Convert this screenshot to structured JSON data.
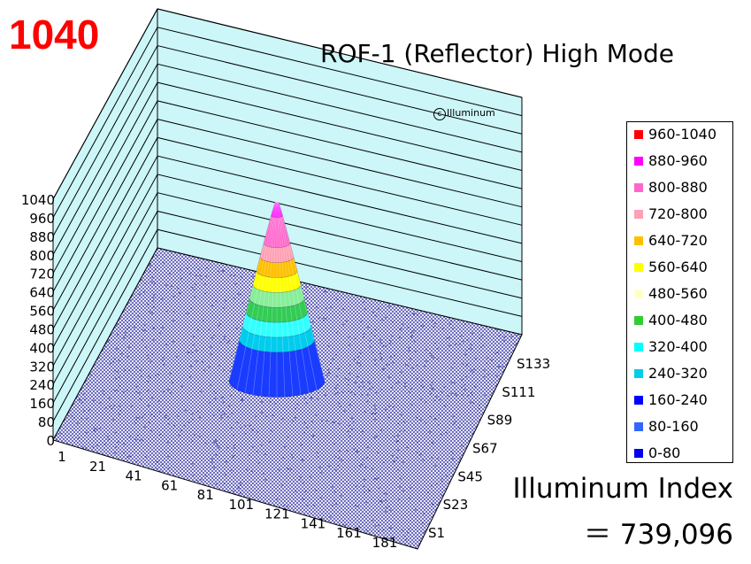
{
  "peak_label": "1040",
  "credit": "Illuminum",
  "index": {
    "label": "Illuminum Index",
    "value": "＝ 739,096"
  },
  "chart_data": {
    "type": "surface3d",
    "title": "ROF-1 (Reflector) High Mode",
    "z_ticks": [
      "0",
      "80",
      "160",
      "240",
      "320",
      "400",
      "480",
      "560",
      "640",
      "720",
      "800",
      "880",
      "960",
      "1040"
    ],
    "zlim": [
      0,
      1040
    ],
    "x_ticks": [
      "1",
      "21",
      "41",
      "61",
      "81",
      "101",
      "121",
      "141",
      "161",
      "181"
    ],
    "y_ticks": [
      "S1",
      "S23",
      "S45",
      "S67",
      "S89",
      "S111",
      "S133"
    ],
    "grid": true,
    "legend_position": "right",
    "legend": [
      {
        "range": "960-1040",
        "color": "#ff0000"
      },
      {
        "range": "880-960",
        "color": "#ff00ff"
      },
      {
        "range": "800-880",
        "color": "#ff66cc"
      },
      {
        "range": "720-800",
        "color": "#ffa0b4"
      },
      {
        "range": "640-720",
        "color": "#ffc000"
      },
      {
        "range": "560-640",
        "color": "#ffff00"
      },
      {
        "range": "480-560",
        "color": "#ffffcc"
      },
      {
        "range": "400-480",
        "color": "#33cc33"
      },
      {
        "range": "320-400",
        "color": "#00ffff"
      },
      {
        "range": "240-320",
        "color": "#00ccee"
      },
      {
        "range": "160-240",
        "color": "#0000ff"
      },
      {
        "range": "80-160",
        "color": "#3366ff"
      },
      {
        "range": "0-80",
        "color": "#0000ee"
      }
    ],
    "bands": [
      {
        "from": 0,
        "to": 240,
        "color": "#1a3cff"
      },
      {
        "from": 240,
        "to": 320,
        "color": "#00ccee"
      },
      {
        "from": 320,
        "to": 400,
        "color": "#33ffff"
      },
      {
        "from": 400,
        "to": 480,
        "color": "#33cc55"
      },
      {
        "from": 480,
        "to": 560,
        "color": "#88ee99"
      },
      {
        "from": 560,
        "to": 640,
        "color": "#ffff00"
      },
      {
        "from": 640,
        "to": 720,
        "color": "#ffc000"
      },
      {
        "from": 720,
        "to": 800,
        "color": "#ffa0b4"
      },
      {
        "from": 800,
        "to": 960,
        "color": "#ff66cc"
      },
      {
        "from": 960,
        "to": 1040,
        "color": "#ff00ff"
      }
    ]
  }
}
